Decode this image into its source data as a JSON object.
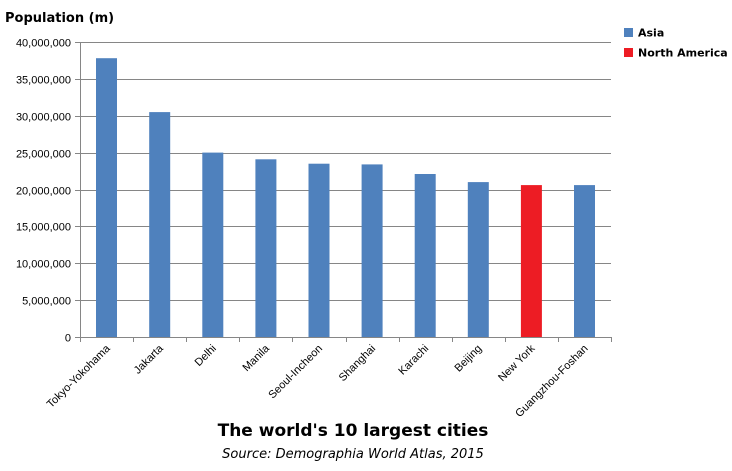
{
  "chart_data": {
    "type": "bar",
    "title": "The world's 10 largest cities",
    "subtitle": "Source: Demographia World Atlas, 2015",
    "ylabel": "Population (m)",
    "xlabel": "",
    "ylim": [
      0,
      40000000
    ],
    "yticks": [
      0,
      5000000,
      10000000,
      15000000,
      20000000,
      25000000,
      30000000,
      35000000,
      40000000
    ],
    "ytick_labels": [
      "0",
      "5,000,000",
      "10,000,000",
      "15,000,000",
      "20,000,000",
      "25,000,000",
      "30,000,000",
      "35,000,000",
      "40,000,000"
    ],
    "grid": true,
    "legend_position": "top-right",
    "legend": [
      {
        "name": "Asia",
        "color": "#4f81bd"
      },
      {
        "name": "North America",
        "color": "#ed1c24"
      }
    ],
    "categories": [
      "Tokyo-Yokohama",
      "Jakarta",
      "Delhi",
      "Manila",
      "Seoul-Incheon",
      "Shanghai",
      "Karachi",
      "Beijing",
      "New York",
      "Guangzhou-Foshan"
    ],
    "values": [
      37800000,
      30500000,
      25000000,
      24100000,
      23500000,
      23400000,
      22100000,
      21000000,
      20600000,
      20600000
    ],
    "region": [
      "Asia",
      "Asia",
      "Asia",
      "Asia",
      "Asia",
      "Asia",
      "Asia",
      "Asia",
      "North America",
      "Asia"
    ]
  }
}
